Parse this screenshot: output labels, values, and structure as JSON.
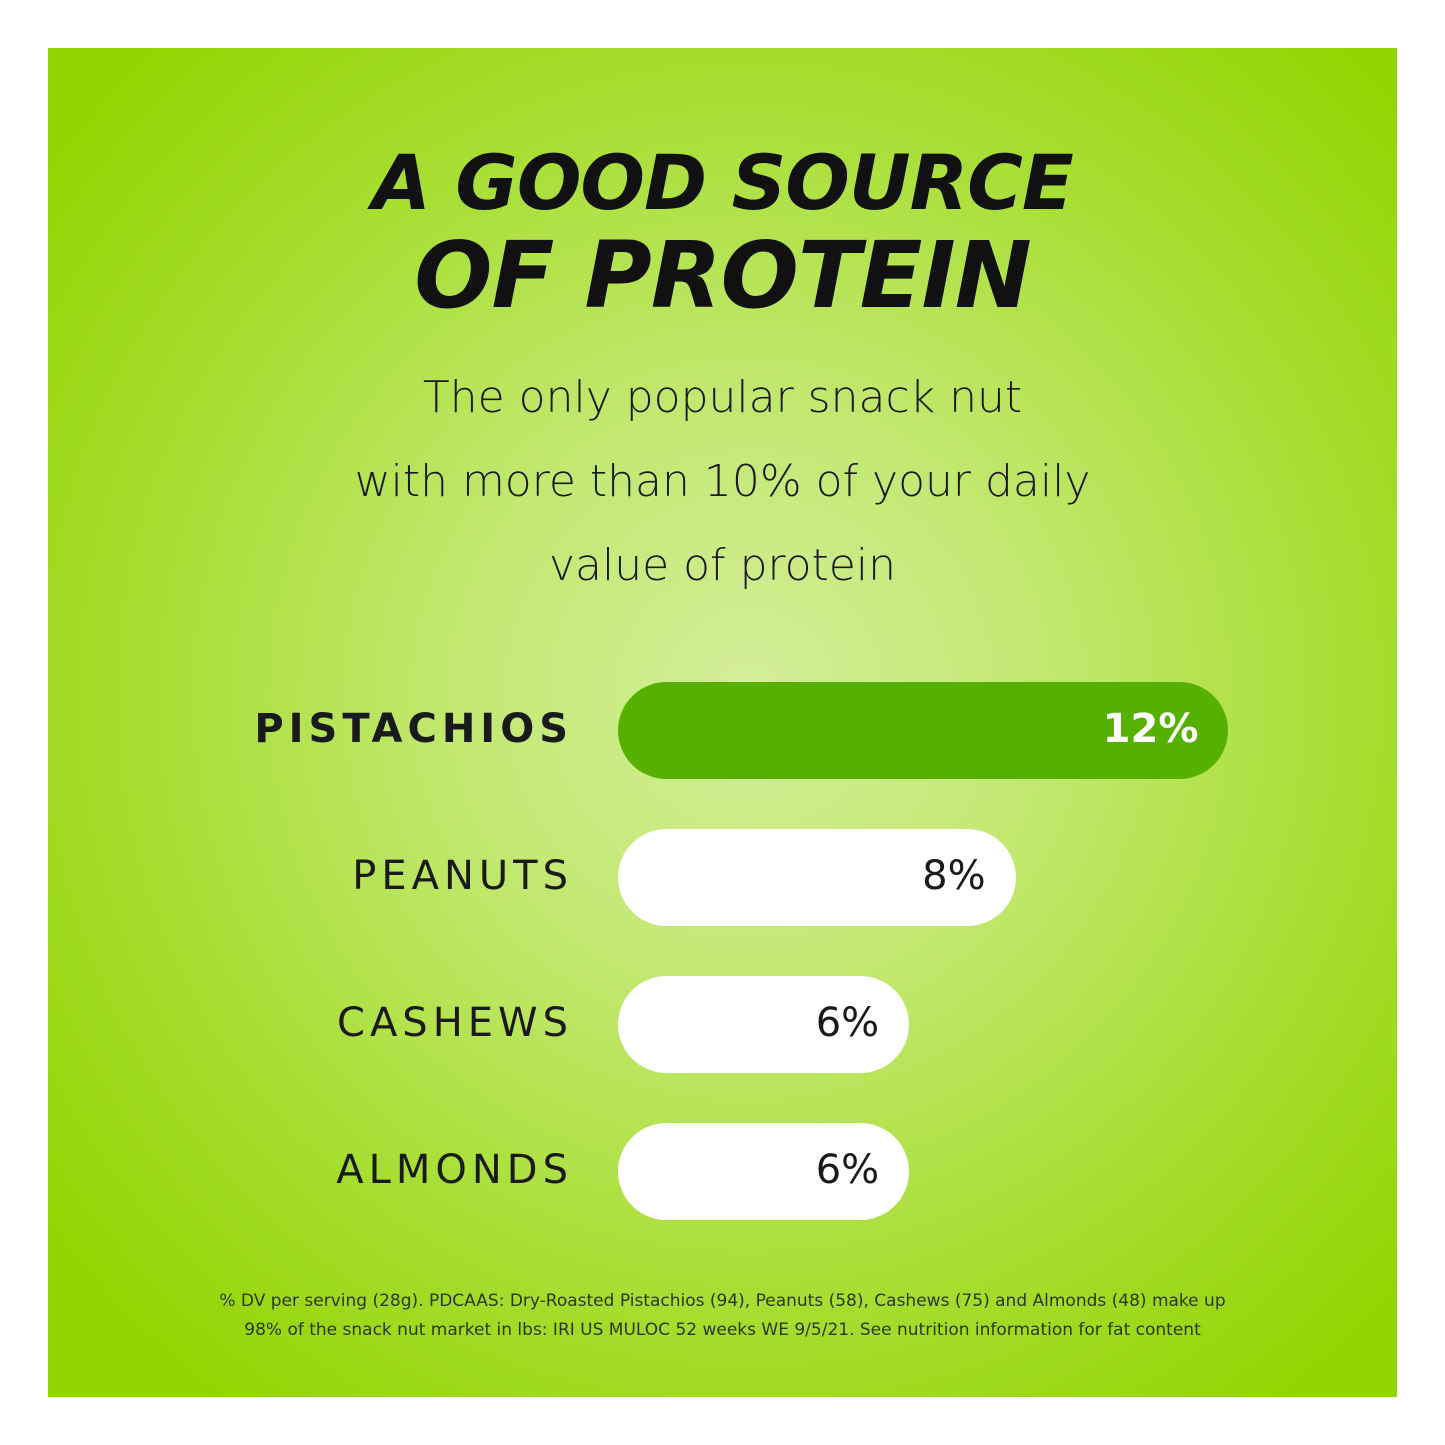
{
  "title_line1": "A GOOD SOURCE",
  "title_line2": "OF PROTEIN",
  "subtitle_lines": [
    "The only popular snack nut",
    "with more than 10% of your daily",
    "value of protein"
  ],
  "chart_data": {
    "type": "bar",
    "orientation": "horizontal",
    "categories": [
      "PISTACHIOS",
      "PEANUTS",
      "CASHEWS",
      "ALMONDS"
    ],
    "values": [
      12,
      8,
      6,
      6
    ],
    "value_labels": [
      "12%",
      "8%",
      "6%",
      "6%"
    ],
    "unit": "% DV",
    "highlight_color": "#55b000",
    "bar_color": "#ffffff",
    "grid": false
  },
  "footnote_lines": [
    "% DV per serving (28g). PDCAAS: Dry-Roasted Pistachios (94), Peanuts (58), Cashews (75) and Almonds (48) make up",
    "98% of the snack nut market in lbs: IRI US MULOC 52 weeks WE 9/5/21. See nutrition information for fat content"
  ]
}
